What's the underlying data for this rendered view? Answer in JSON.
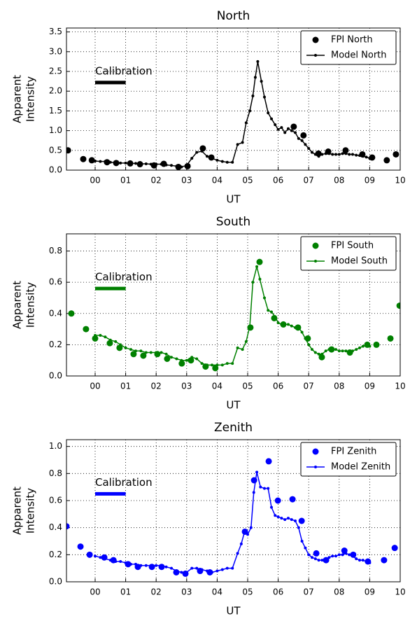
{
  "chart_data": [
    {
      "type": "line",
      "title": "North",
      "xlabel": "UT",
      "ylabel": [
        "Apparent",
        "Intensity"
      ],
      "xlim": [
        -0.94,
        10
      ],
      "ylim": [
        0,
        3.6
      ],
      "xticks": [
        {
          "value": 0,
          "label": "00"
        },
        {
          "value": 1,
          "label": "01"
        },
        {
          "value": 2,
          "label": "02"
        },
        {
          "value": 3,
          "label": "03"
        },
        {
          "value": 4,
          "label": "04"
        },
        {
          "value": 5,
          "label": "05"
        },
        {
          "value": 6,
          "label": "06"
        },
        {
          "value": 7,
          "label": "07"
        },
        {
          "value": 8,
          "label": "08"
        },
        {
          "value": 9,
          "label": "09"
        },
        10
      ],
      "yticks": [
        {
          "value": 0,
          "label": "0.0"
        },
        0.5,
        {
          "value": 1,
          "label": "1.0"
        },
        1.5,
        {
          "value": 2,
          "label": "2.0"
        },
        2.5,
        {
          "value": 3,
          "label": "3.0"
        },
        3.5
      ],
      "grid": true,
      "legend": "upper right",
      "calibration": {
        "label": "Calibration",
        "x": [
          0,
          1
        ],
        "y": 2.22,
        "color": "#000000"
      },
      "series": [
        {
          "name": "FPI North",
          "color": "#000000",
          "style": "markers",
          "x": [
            -0.89,
            -0.39,
            -0.11,
            0.39,
            0.69,
            1.15,
            1.47,
            1.93,
            2.25,
            2.73,
            3.03,
            3.53,
            3.81,
            6.51,
            6.83,
            7.32,
            7.64,
            8.21,
            8.76,
            9.08,
            9.56,
            9.86
          ],
          "values": [
            0.5,
            0.28,
            0.25,
            0.2,
            0.18,
            0.17,
            0.15,
            0.12,
            0.16,
            0.08,
            0.1,
            0.55,
            0.32,
            1.1,
            0.88,
            0.42,
            0.47,
            0.5,
            0.4,
            0.32,
            0.25,
            0.4
          ]
        },
        {
          "name": "Model North",
          "color": "#000000",
          "style": "line",
          "x": [
            0.0,
            0.17,
            0.33,
            0.5,
            0.67,
            0.83,
            1.0,
            1.17,
            1.33,
            1.5,
            1.67,
            1.83,
            2.0,
            2.17,
            2.33,
            2.5,
            2.67,
            2.83,
            3.0,
            3.17,
            3.33,
            3.5,
            3.67,
            3.83,
            4.0,
            4.17,
            4.33,
            4.5,
            4.67,
            4.83,
            4.95,
            5.07,
            5.17,
            5.25,
            5.33,
            5.45,
            5.55,
            5.67,
            5.78,
            5.9,
            6.0,
            6.11,
            6.22,
            6.33,
            6.44,
            6.56,
            6.67,
            6.78,
            6.89,
            7.0,
            7.11,
            7.22,
            7.33,
            7.44,
            7.56,
            7.67,
            7.78,
            7.89,
            8.0,
            8.11,
            8.22,
            8.33,
            8.44,
            8.56,
            8.67,
            8.78,
            8.89,
            9.0
          ],
          "values": [
            0.23,
            0.22,
            0.22,
            0.2,
            0.19,
            0.18,
            0.18,
            0.17,
            0.17,
            0.16,
            0.16,
            0.15,
            0.15,
            0.15,
            0.13,
            0.12,
            0.1,
            0.08,
            0.12,
            0.3,
            0.45,
            0.48,
            0.35,
            0.3,
            0.25,
            0.22,
            0.2,
            0.2,
            0.65,
            0.7,
            1.2,
            1.5,
            1.88,
            2.35,
            2.75,
            2.25,
            1.85,
            1.45,
            1.3,
            1.15,
            1.03,
            1.08,
            0.95,
            1.05,
            1.0,
            0.95,
            0.8,
            0.75,
            0.65,
            0.55,
            0.45,
            0.4,
            0.35,
            0.4,
            0.42,
            0.42,
            0.4,
            0.4,
            0.4,
            0.42,
            0.42,
            0.4,
            0.4,
            0.38,
            0.37,
            0.35,
            0.33,
            0.3
          ]
        }
      ]
    },
    {
      "type": "line",
      "title": "South",
      "xlabel": "UT",
      "ylabel": [
        "Apparent",
        "Intensity"
      ],
      "xlim": [
        -0.94,
        10
      ],
      "ylim": [
        0,
        0.91
      ],
      "xticks": [
        {
          "value": 0,
          "label": "00"
        },
        {
          "value": 1,
          "label": "01"
        },
        {
          "value": 2,
          "label": "02"
        },
        {
          "value": 3,
          "label": "03"
        },
        {
          "value": 4,
          "label": "04"
        },
        {
          "value": 5,
          "label": "05"
        },
        {
          "value": 6,
          "label": "06"
        },
        {
          "value": 7,
          "label": "07"
        },
        {
          "value": 8,
          "label": "08"
        },
        {
          "value": 9,
          "label": "09"
        },
        10
      ],
      "yticks": [
        {
          "value": 0,
          "label": "0.0"
        },
        0.2,
        0.4,
        0.6,
        0.8
      ],
      "grid": true,
      "legend": "upper right",
      "calibration": {
        "label": "Calibration",
        "x": [
          0,
          1
        ],
        "y": 0.56,
        "color": "#008000"
      },
      "series": [
        {
          "name": "FPI South",
          "color": "#008000",
          "style": "markers",
          "x": [
            -0.78,
            -0.3,
            0.0,
            0.48,
            0.8,
            1.26,
            1.58,
            2.04,
            2.36,
            2.84,
            3.14,
            3.62,
            3.94,
            5.09,
            5.39,
            5.87,
            6.17,
            6.65,
            6.97,
            7.43,
            7.75,
            8.35,
            8.92,
            9.22,
            9.68,
            9.98
          ],
          "values": [
            0.4,
            0.3,
            0.24,
            0.21,
            0.18,
            0.14,
            0.13,
            0.14,
            0.11,
            0.08,
            0.1,
            0.06,
            0.05,
            0.31,
            0.73,
            0.37,
            0.33,
            0.31,
            0.24,
            0.12,
            0.17,
            0.15,
            0.2,
            0.2,
            0.24,
            0.45
          ]
        },
        {
          "name": "Model South",
          "color": "#008000",
          "style": "line",
          "x": [
            0.0,
            0.17,
            0.33,
            0.5,
            0.67,
            0.83,
            1.0,
            1.17,
            1.33,
            1.5,
            1.67,
            1.83,
            2.0,
            2.17,
            2.33,
            2.5,
            2.67,
            2.83,
            3.0,
            3.17,
            3.33,
            3.5,
            3.67,
            3.83,
            4.0,
            4.17,
            4.33,
            4.5,
            4.67,
            4.83,
            4.95,
            5.07,
            5.17,
            5.3,
            5.4,
            5.55,
            5.67,
            5.78,
            5.9,
            6.0,
            6.11,
            6.22,
            6.33,
            6.44,
            6.56,
            6.67,
            6.78,
            6.89,
            7.0,
            7.11,
            7.22,
            7.33,
            7.44,
            7.56,
            7.67,
            7.78,
            7.89,
            8.0,
            8.11,
            8.22,
            8.33,
            8.44,
            8.56,
            8.67,
            8.78,
            8.89,
            9.0
          ],
          "values": [
            0.26,
            0.26,
            0.25,
            0.23,
            0.22,
            0.2,
            0.18,
            0.17,
            0.16,
            0.16,
            0.15,
            0.15,
            0.15,
            0.15,
            0.14,
            0.12,
            0.11,
            0.1,
            0.1,
            0.12,
            0.11,
            0.08,
            0.07,
            0.07,
            0.07,
            0.07,
            0.08,
            0.08,
            0.18,
            0.17,
            0.22,
            0.32,
            0.6,
            0.7,
            0.62,
            0.5,
            0.42,
            0.41,
            0.38,
            0.34,
            0.33,
            0.33,
            0.33,
            0.32,
            0.31,
            0.31,
            0.28,
            0.24,
            0.2,
            0.17,
            0.15,
            0.14,
            0.14,
            0.16,
            0.17,
            0.17,
            0.17,
            0.16,
            0.16,
            0.16,
            0.16,
            0.16,
            0.17,
            0.18,
            0.19,
            0.2,
            0.19
          ]
        }
      ]
    },
    {
      "type": "line",
      "title": "Zenith",
      "xlabel": "UT",
      "ylabel": [
        "Apparent",
        "Intensity"
      ],
      "xlim": [
        -0.94,
        10
      ],
      "ylim": [
        0,
        1.05
      ],
      "xticks": [
        {
          "value": 0,
          "label": "00"
        },
        {
          "value": 1,
          "label": "01"
        },
        {
          "value": 2,
          "label": "02"
        },
        {
          "value": 3,
          "label": "03"
        },
        {
          "value": 4,
          "label": "04"
        },
        {
          "value": 5,
          "label": "05"
        },
        {
          "value": 6,
          "label": "06"
        },
        {
          "value": 7,
          "label": "07"
        },
        {
          "value": 8,
          "label": "08"
        },
        {
          "value": 9,
          "label": "09"
        },
        10
      ],
      "yticks": [
        {
          "value": 0,
          "label": "0.0"
        },
        0.2,
        0.4,
        0.6,
        0.8,
        {
          "value": 1,
          "label": "1.0"
        }
      ],
      "grid": true,
      "legend": "upper right",
      "calibration": {
        "label": "Calibration",
        "x": [
          0,
          1
        ],
        "y": 0.65,
        "color": "#0000ff"
      },
      "series": [
        {
          "name": "FPI Zenith",
          "color": "#0000ff",
          "style": "markers",
          "x": [
            -0.94,
            -0.48,
            -0.18,
            0.3,
            0.6,
            1.08,
            1.4,
            1.86,
            2.18,
            2.66,
            2.96,
            3.44,
            3.76,
            4.91,
            5.21,
            5.69,
            5.99,
            6.47,
            6.77,
            7.25,
            7.57,
            8.17,
            8.46,
            8.94,
            9.47,
            9.82
          ],
          "values": [
            0.41,
            0.26,
            0.2,
            0.18,
            0.16,
            0.13,
            0.11,
            0.11,
            0.11,
            0.07,
            0.06,
            0.08,
            0.07,
            0.37,
            0.75,
            0.89,
            0.6,
            0.61,
            0.45,
            0.21,
            0.16,
            0.23,
            0.2,
            0.15,
            0.16,
            0.25
          ]
        },
        {
          "name": "Model Zenith",
          "color": "#0000ff",
          "style": "line",
          "x": [
            0.0,
            0.17,
            0.33,
            0.5,
            0.67,
            0.83,
            1.0,
            1.17,
            1.33,
            1.5,
            1.67,
            1.83,
            2.0,
            2.17,
            2.33,
            2.5,
            2.67,
            2.83,
            3.0,
            3.17,
            3.33,
            3.5,
            3.67,
            3.83,
            4.0,
            4.17,
            4.33,
            4.5,
            4.67,
            4.79,
            4.91,
            5.0,
            5.11,
            5.2,
            5.3,
            5.42,
            5.55,
            5.67,
            5.78,
            5.9,
            6.0,
            6.11,
            6.22,
            6.33,
            6.44,
            6.56,
            6.67,
            6.78,
            6.89,
            7.0,
            7.11,
            7.22,
            7.33,
            7.44,
            7.56,
            7.67,
            7.78,
            7.89,
            8.0,
            8.11,
            8.22,
            8.33,
            8.44,
            8.56,
            8.67,
            8.78,
            8.89,
            9.0
          ],
          "values": [
            0.19,
            0.18,
            0.17,
            0.16,
            0.15,
            0.15,
            0.14,
            0.13,
            0.13,
            0.12,
            0.12,
            0.12,
            0.12,
            0.12,
            0.11,
            0.1,
            0.08,
            0.07,
            0.07,
            0.1,
            0.1,
            0.09,
            0.08,
            0.07,
            0.08,
            0.09,
            0.1,
            0.1,
            0.21,
            0.28,
            0.38,
            0.35,
            0.4,
            0.66,
            0.81,
            0.7,
            0.69,
            0.69,
            0.55,
            0.49,
            0.48,
            0.47,
            0.46,
            0.47,
            0.46,
            0.45,
            0.4,
            0.3,
            0.25,
            0.2,
            0.18,
            0.17,
            0.16,
            0.16,
            0.17,
            0.18,
            0.19,
            0.19,
            0.2,
            0.2,
            0.21,
            0.2,
            0.19,
            0.17,
            0.16,
            0.16,
            0.15,
            0.14
          ]
        }
      ]
    }
  ]
}
